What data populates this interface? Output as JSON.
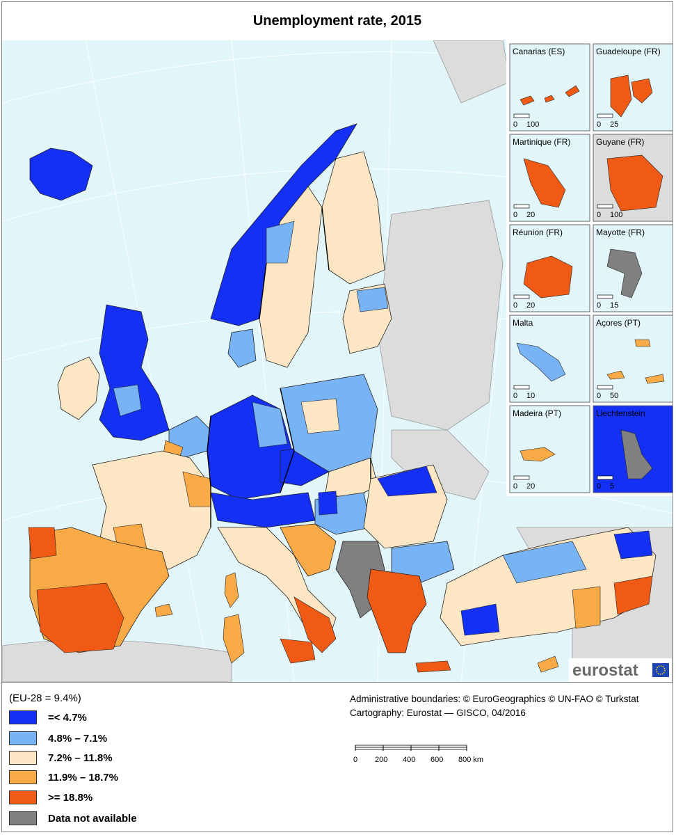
{
  "title": "Unemployment rate, 2015",
  "colors": {
    "sea": "#e2f6fa",
    "non_eu_land": "#dcdcdc",
    "class1": "#1430f5",
    "class2": "#78b4f5",
    "class3": "#fde6c4",
    "class4": "#f8aa46",
    "class5": "#f05a14",
    "no_data": "#808080"
  },
  "legend": {
    "eu_average": "(EU-28  =  9.4%)",
    "classes": [
      {
        "label": "=< 4.7%",
        "color": "#1430f5"
      },
      {
        "label": "4.8% – 7.1%",
        "color": "#78b4f5"
      },
      {
        "label": "7.2% – 11.8%",
        "color": "#fde6c4"
      },
      {
        "label": "11.9% – 18.7%",
        "color": "#f8aa46"
      },
      {
        "label": ">= 18.8%",
        "color": "#f05a14"
      },
      {
        "label": "Data not available",
        "color": "#808080"
      }
    ]
  },
  "credits": {
    "line1": "Administrative boundaries: © EuroGeographics © UN-FAO © Turkstat",
    "line2": "Cartography: Eurostat — GISCO, 04/2016"
  },
  "scale_bar": {
    "ticks": [
      "0",
      "200",
      "400",
      "600",
      "800 km"
    ]
  },
  "logo": "eurostat",
  "insets": [
    {
      "name": "Canarias (ES)",
      "scale": [
        "0",
        "100"
      ]
    },
    {
      "name": "Guadeloupe (FR)",
      "scale": [
        "0",
        "25"
      ]
    },
    {
      "name": "Martinique (FR)",
      "scale": [
        "0",
        "20"
      ]
    },
    {
      "name": "Guyane (FR)",
      "scale": [
        "0",
        "100"
      ]
    },
    {
      "name": "Réunion (FR)",
      "scale": [
        "0",
        "20"
      ]
    },
    {
      "name": "Mayotte (FR)",
      "scale": [
        "0",
        "15"
      ]
    },
    {
      "name": "Malta",
      "scale": [
        "0",
        "10"
      ]
    },
    {
      "name": "Açores (PT)",
      "scale": [
        "0",
        "50"
      ]
    },
    {
      "name": "Madeira (PT)",
      "scale": [
        "0",
        "20"
      ]
    },
    {
      "name": "Liechtenstein",
      "scale": [
        "0",
        "5"
      ]
    }
  ]
}
